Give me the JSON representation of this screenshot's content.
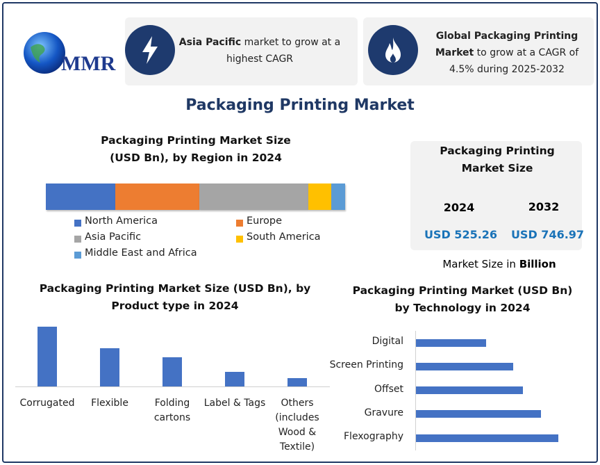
{
  "header": {
    "logo": "MMR",
    "highlights": [
      {
        "bold": "Asia Pacific",
        "text": " market to grow at a highest CAGR"
      },
      {
        "bold": "Global Packaging Printing Market",
        "text": " to grow at a CAGR of 4.5% during 2025-2032"
      }
    ]
  },
  "title": "Packaging Printing Market",
  "market_size": {
    "title": "Packaging Printing Market Size",
    "years": [
      "2024",
      "2032"
    ],
    "values": [
      "USD 525.26",
      "USD 746.97"
    ],
    "note": "Market Size in",
    "note_bold": "Billion"
  },
  "chart_data": [
    {
      "type": "stacked_bar",
      "title": "Packaging Printing Market Size (USD Bn), by Region in 2024",
      "series": [
        {
          "name": "North America",
          "color": "#4472c4",
          "values": [
            122
          ]
        },
        {
          "name": "Europe",
          "color": "#ed7d31",
          "values": [
            147
          ]
        },
        {
          "name": "Asia Pacific",
          "color": "#a5a5a5",
          "values": [
            191
          ]
        },
        {
          "name": "South America",
          "color": "#ffc000",
          "values": [
            40
          ]
        },
        {
          "name": "Middle East and Africa",
          "color": "#5b9bd5",
          "values": [
            24
          ]
        }
      ]
    },
    {
      "type": "bar",
      "title": "Packaging Printing Market Size (USD Bn), by Product type in 2024",
      "categories": [
        "Corrugated",
        "Flexible",
        "Folding cartons",
        "Label & Tags",
        "Others (includes Wood & Textile)"
      ],
      "values": [
        209,
        134,
        102,
        51,
        29
      ],
      "color": "#4472c4"
    },
    {
      "type": "barh",
      "title": "Packaging Printing Market (USD Bn) by Technology in 2024",
      "categories": [
        "Digital",
        "Screen Printing",
        "Offset",
        "Gravure",
        "Flexography"
      ],
      "values": [
        68,
        94,
        104,
        121,
        138
      ],
      "color": "#4472c4"
    }
  ]
}
